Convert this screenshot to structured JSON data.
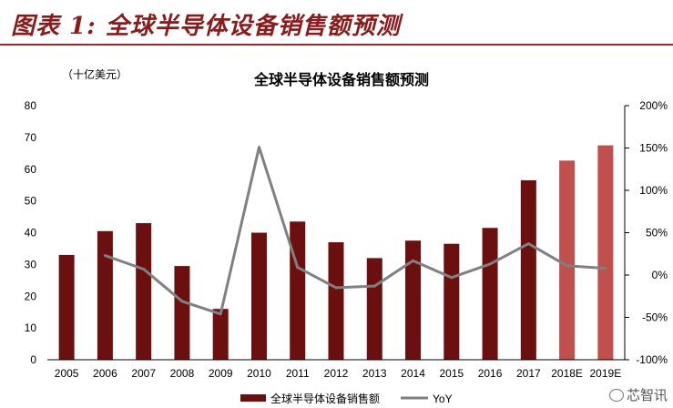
{
  "figure_title": "图表 1: 全球半导体设备销售额预测",
  "watermark": "芯智讯",
  "chart_data": {
    "type": "bar",
    "title": "全球半导体设备销售额预测",
    "unit_label": "（十亿美元）",
    "categories": [
      "2005",
      "2006",
      "2007",
      "2008",
      "2009",
      "2010",
      "2011",
      "2012",
      "2013",
      "2014",
      "2015",
      "2016",
      "2017",
      "2018E",
      "2019E"
    ],
    "series": [
      {
        "name": "全球半导体设备销售额",
        "type": "bar",
        "axis": "left",
        "values": [
          33,
          40.5,
          43,
          29.5,
          16,
          40,
          43.5,
          37,
          32,
          37.5,
          36.5,
          41.5,
          56.5,
          62.7,
          67.5
        ],
        "colors": [
          "#6b0f0f",
          "#6b0f0f",
          "#6b0f0f",
          "#6b0f0f",
          "#6b0f0f",
          "#6b0f0f",
          "#6b0f0f",
          "#6b0f0f",
          "#6b0f0f",
          "#6b0f0f",
          "#6b0f0f",
          "#6b0f0f",
          "#6b0f0f",
          "#c0504d",
          "#c0504d"
        ]
      },
      {
        "name": "YoY",
        "type": "line",
        "axis": "right",
        "values": [
          null,
          23,
          7,
          -31,
          -46,
          151,
          9,
          -15,
          -13,
          17,
          -3,
          13,
          37,
          11,
          8
        ],
        "color": "#808080"
      }
    ],
    "y_left": {
      "min": 0,
      "max": 80,
      "ticks": [
        "0",
        "10",
        "20",
        "30",
        "40",
        "50",
        "60",
        "70",
        "80"
      ]
    },
    "y_right": {
      "min": -100,
      "max": 200,
      "ticks": [
        "-100%",
        "-50%",
        "0%",
        "50%",
        "100%",
        "150%",
        "200%"
      ]
    },
    "legend_position": "bottom",
    "grid": false
  }
}
